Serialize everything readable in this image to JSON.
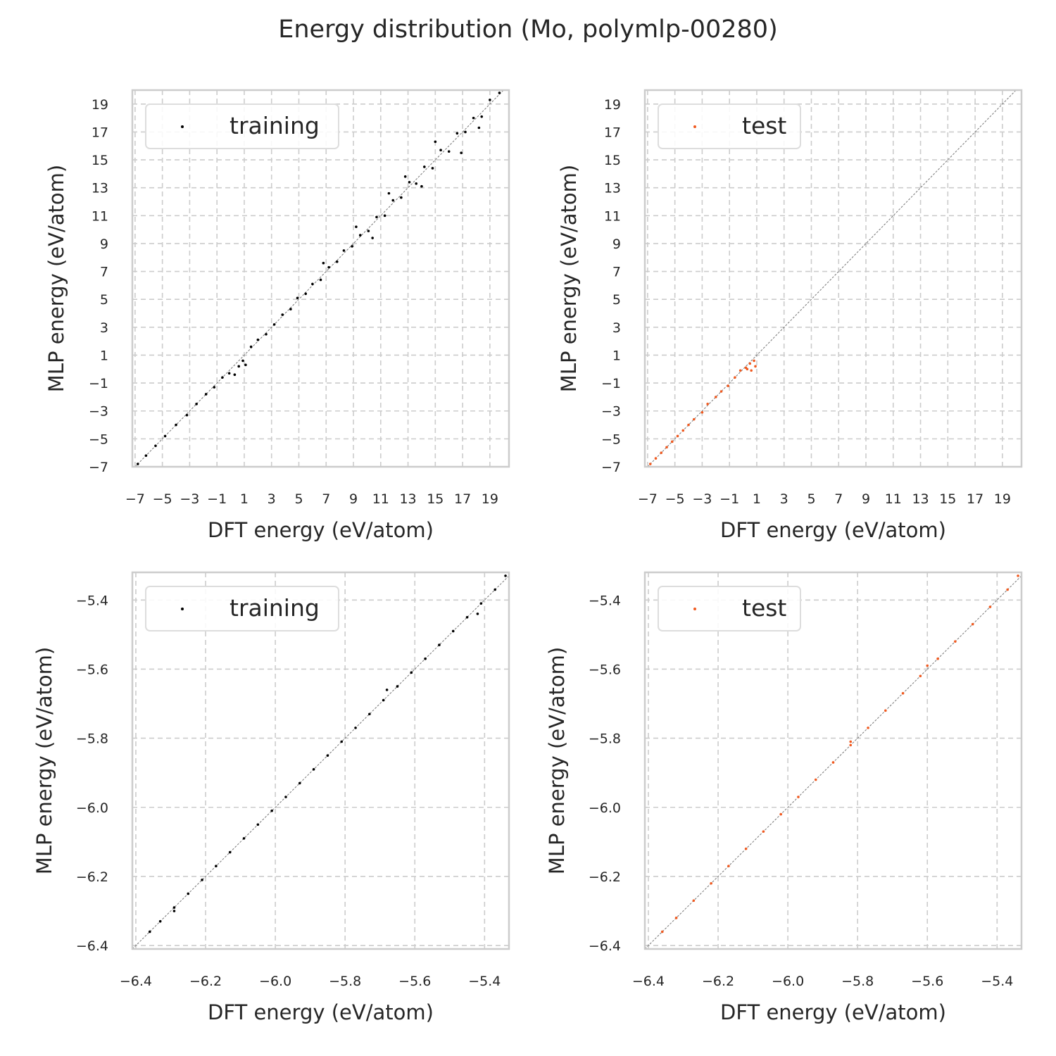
{
  "figure": {
    "title": "Energy distribution (Mo, polymlp-00280)"
  },
  "chart_data": [
    {
      "type": "scatter",
      "panel": "top-left",
      "title": "",
      "xlabel": "DFT energy (eV/atom)",
      "ylabel": "MLP energy (eV/atom)",
      "xlim": [
        -7.2,
        20.4
      ],
      "ylim": [
        -7.0,
        20.0
      ],
      "xticks": [
        -7,
        -5,
        -3,
        -1,
        1,
        3,
        5,
        7,
        9,
        11,
        13,
        15,
        17,
        19
      ],
      "yticks": [
        -7,
        -5,
        -3,
        -1,
        1,
        3,
        5,
        7,
        9,
        11,
        13,
        15,
        17,
        19
      ],
      "xtick_labels": [
        "−7",
        "−5",
        "−3",
        "−1",
        "1",
        "3",
        "5",
        "7",
        "9",
        "11",
        "13",
        "15",
        "17",
        "19"
      ],
      "ytick_labels": [
        "−7",
        "−5",
        "−3",
        "−1",
        "1",
        "3",
        "5",
        "7",
        "9",
        "11",
        "13",
        "15",
        "17",
        "19"
      ],
      "grid": true,
      "diagonal": true,
      "legend": "top-left",
      "series": [
        {
          "name": "training",
          "color": "#000000",
          "points": [
            [
              -6.8,
              -6.8
            ],
            [
              -6.2,
              -6.2
            ],
            [
              -5.5,
              -5.5
            ],
            [
              -4.8,
              -4.8
            ],
            [
              -4.0,
              -4.0
            ],
            [
              -3.2,
              -3.3
            ],
            [
              -2.5,
              -2.5
            ],
            [
              -1.8,
              -1.8
            ],
            [
              -1.2,
              -1.3
            ],
            [
              -0.6,
              -0.6
            ],
            [
              -0.1,
              -0.3
            ],
            [
              0.3,
              -0.4
            ],
            [
              0.6,
              0.2
            ],
            [
              0.9,
              0.6
            ],
            [
              1.1,
              0.3
            ],
            [
              1.5,
              1.6
            ],
            [
              2.0,
              2.1
            ],
            [
              2.6,
              2.5
            ],
            [
              3.2,
              3.2
            ],
            [
              3.8,
              3.9
            ],
            [
              4.4,
              4.3
            ],
            [
              4.9,
              5.1
            ],
            [
              5.5,
              5.4
            ],
            [
              6.0,
              6.1
            ],
            [
              6.6,
              6.4
            ],
            [
              7.2,
              7.3
            ],
            [
              7.8,
              7.7
            ],
            [
              8.3,
              8.5
            ],
            [
              8.9,
              8.8
            ],
            [
              9.5,
              9.6
            ],
            [
              10.1,
              9.9
            ],
            [
              10.7,
              10.9
            ],
            [
              11.3,
              11.0
            ],
            [
              11.9,
              12.1
            ],
            [
              12.5,
              12.3
            ],
            [
              13.1,
              13.4
            ],
            [
              13.6,
              13.3
            ],
            [
              14.2,
              14.5
            ],
            [
              14.8,
              14.4
            ],
            [
              15.4,
              15.7
            ],
            [
              16.0,
              15.6
            ],
            [
              16.6,
              16.9
            ],
            [
              17.2,
              17.0
            ],
            [
              17.8,
              18.0
            ],
            [
              18.4,
              18.1
            ],
            [
              19.0,
              19.3
            ],
            [
              19.7,
              19.8
            ],
            [
              12.8,
              13.8
            ],
            [
              15.0,
              16.3
            ],
            [
              16.9,
              15.5
            ],
            [
              9.2,
              10.2
            ],
            [
              10.4,
              9.4
            ],
            [
              6.8,
              7.6
            ],
            [
              18.2,
              17.3
            ],
            [
              14.0,
              13.1
            ],
            [
              11.6,
              12.6
            ]
          ]
        }
      ]
    },
    {
      "type": "scatter",
      "panel": "top-right",
      "title": "",
      "xlabel": "DFT energy (eV/atom)",
      "ylabel": "MLP energy (eV/atom)",
      "xlim": [
        -7.2,
        20.4
      ],
      "ylim": [
        -7.0,
        20.0
      ],
      "xticks": [
        -7,
        -5,
        -3,
        -1,
        1,
        3,
        5,
        7,
        9,
        11,
        13,
        15,
        17,
        19
      ],
      "yticks": [
        -7,
        -5,
        -3,
        -1,
        1,
        3,
        5,
        7,
        9,
        11,
        13,
        15,
        17,
        19
      ],
      "xtick_labels": [
        "−7",
        "−5",
        "−3",
        "−1",
        "1",
        "3",
        "5",
        "7",
        "9",
        "11",
        "13",
        "15",
        "17",
        "19"
      ],
      "ytick_labels": [
        "−7",
        "−5",
        "−3",
        "−1",
        "1",
        "3",
        "5",
        "7",
        "9",
        "11",
        "13",
        "15",
        "17",
        "19"
      ],
      "grid": true,
      "diagonal": true,
      "legend": "top-left",
      "series": [
        {
          "name": "test",
          "color": "#f05a20",
          "points": [
            [
              -6.8,
              -6.8
            ],
            [
              -6.4,
              -6.4
            ],
            [
              -6.0,
              -6.0
            ],
            [
              -5.6,
              -5.6
            ],
            [
              -5.2,
              -5.2
            ],
            [
              -4.8,
              -4.8
            ],
            [
              -4.4,
              -4.4
            ],
            [
              -4.0,
              -4.0
            ],
            [
              -3.6,
              -3.6
            ],
            [
              -3.0,
              -3.1
            ],
            [
              -2.6,
              -2.5
            ],
            [
              -2.0,
              -2.0
            ],
            [
              -1.6,
              -1.6
            ],
            [
              -1.1,
              -1.2
            ],
            [
              -0.6,
              -0.6
            ],
            [
              -0.2,
              -0.1
            ],
            [
              0.2,
              0.1
            ],
            [
              0.5,
              0.4
            ],
            [
              0.8,
              0.6
            ],
            [
              0.9,
              0.2
            ],
            [
              0.6,
              -0.1
            ],
            [
              0.3,
              0.0
            ]
          ]
        }
      ]
    },
    {
      "type": "scatter",
      "panel": "bottom-left",
      "title": "",
      "xlabel": "DFT energy (eV/atom)",
      "ylabel": "MLP energy (eV/atom)",
      "xlim": [
        -6.41,
        -5.33
      ],
      "ylim": [
        -6.41,
        -5.32
      ],
      "xticks": [
        -6.4,
        -6.2,
        -6.0,
        -5.8,
        -5.6,
        -5.4
      ],
      "yticks": [
        -6.4,
        -6.2,
        -6.0,
        -5.8,
        -5.6,
        -5.4
      ],
      "xtick_labels": [
        "−6.4",
        "−6.2",
        "−6.0",
        "−5.8",
        "−5.6",
        "−5.4"
      ],
      "ytick_labels": [
        "−6.4",
        "−6.2",
        "−6.0",
        "−5.8",
        "−5.6",
        "−5.4"
      ],
      "grid": true,
      "diagonal": true,
      "legend": "top-left",
      "series": [
        {
          "name": "training",
          "color": "#000000",
          "points": [
            [
              -6.36,
              -6.36
            ],
            [
              -6.33,
              -6.33
            ],
            [
              -6.29,
              -6.3
            ],
            [
              -6.25,
              -6.25
            ],
            [
              -6.21,
              -6.21
            ],
            [
              -6.17,
              -6.17
            ],
            [
              -6.13,
              -6.13
            ],
            [
              -6.09,
              -6.09
            ],
            [
              -6.05,
              -6.05
            ],
            [
              -6.01,
              -6.01
            ],
            [
              -5.97,
              -5.97
            ],
            [
              -5.93,
              -5.93
            ],
            [
              -5.89,
              -5.89
            ],
            [
              -5.85,
              -5.85
            ],
            [
              -5.81,
              -5.81
            ],
            [
              -5.77,
              -5.77
            ],
            [
              -5.73,
              -5.73
            ],
            [
              -5.69,
              -5.69
            ],
            [
              -5.65,
              -5.65
            ],
            [
              -5.61,
              -5.61
            ],
            [
              -5.57,
              -5.57
            ],
            [
              -5.53,
              -5.53
            ],
            [
              -5.49,
              -5.49
            ],
            [
              -5.45,
              -5.45
            ],
            [
              -5.41,
              -5.41
            ],
            [
              -5.37,
              -5.37
            ],
            [
              -5.34,
              -5.33
            ],
            [
              -6.29,
              -6.29
            ],
            [
              -5.68,
              -5.66
            ],
            [
              -5.42,
              -5.44
            ]
          ]
        }
      ]
    },
    {
      "type": "scatter",
      "panel": "bottom-right",
      "title": "",
      "xlabel": "DFT energy (eV/atom)",
      "ylabel": "MLP energy (eV/atom)",
      "xlim": [
        -6.41,
        -5.33
      ],
      "ylim": [
        -6.41,
        -5.32
      ],
      "xticks": [
        -6.4,
        -6.2,
        -6.0,
        -5.8,
        -5.6,
        -5.4
      ],
      "yticks": [
        -6.4,
        -6.2,
        -6.0,
        -5.8,
        -5.6,
        -5.4
      ],
      "xtick_labels": [
        "−6.4",
        "−6.2",
        "−6.0",
        "−5.8",
        "−5.6",
        "−5.4"
      ],
      "ytick_labels": [
        "−6.4",
        "−6.2",
        "−6.0",
        "−5.8",
        "−5.6",
        "−5.4"
      ],
      "grid": true,
      "diagonal": true,
      "legend": "top-left",
      "series": [
        {
          "name": "test",
          "color": "#f05a20",
          "points": [
            [
              -6.36,
              -6.36
            ],
            [
              -6.32,
              -6.32
            ],
            [
              -6.27,
              -6.27
            ],
            [
              -6.22,
              -6.22
            ],
            [
              -6.17,
              -6.17
            ],
            [
              -6.12,
              -6.12
            ],
            [
              -6.07,
              -6.07
            ],
            [
              -6.02,
              -6.02
            ],
            [
              -5.97,
              -5.97
            ],
            [
              -5.92,
              -5.92
            ],
            [
              -5.87,
              -5.87
            ],
            [
              -5.82,
              -5.82
            ],
            [
              -5.77,
              -5.77
            ],
            [
              -5.72,
              -5.72
            ],
            [
              -5.67,
              -5.67
            ],
            [
              -5.62,
              -5.62
            ],
            [
              -5.57,
              -5.57
            ],
            [
              -5.52,
              -5.52
            ],
            [
              -5.47,
              -5.47
            ],
            [
              -5.42,
              -5.42
            ],
            [
              -5.37,
              -5.37
            ],
            [
              -5.34,
              -5.33
            ],
            [
              -5.6,
              -5.59
            ],
            [
              -5.82,
              -5.81
            ]
          ]
        }
      ]
    }
  ]
}
